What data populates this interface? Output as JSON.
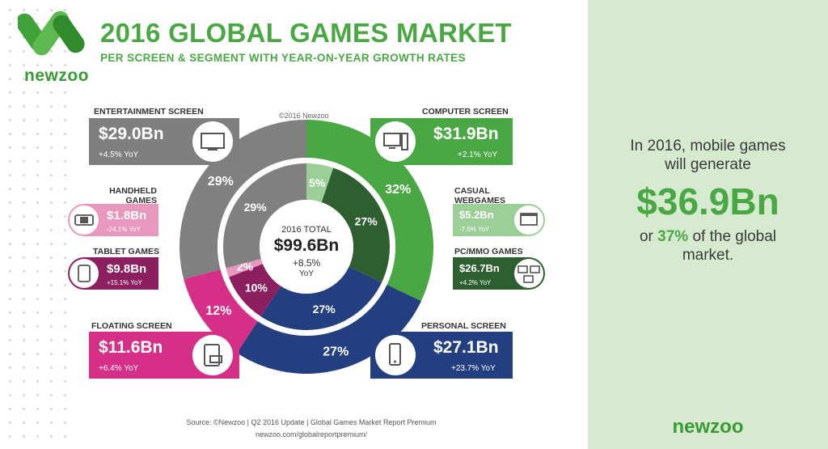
{
  "header": {
    "logo_text": "newzoo",
    "title": "2016 GLOBAL GAMES MARKET",
    "subtitle": "PER SCREEN & SEGMENT WITH YEAR-ON-YEAR GROWTH RATES",
    "copyright": "©2016 Newzoo"
  },
  "center": {
    "label": "2016 TOTAL",
    "value": "$99.6Bn",
    "growth": "+8.5%",
    "yoy": "YoY"
  },
  "boxes": {
    "entertainment": {
      "label": "ENTERTAINMENT SCREEN",
      "value": "$29.0Bn",
      "yoy": "+4.5% YoY",
      "color": "#7f7f7f"
    },
    "computer": {
      "label": "COMPUTER SCREEN",
      "value": "$31.9Bn",
      "yoy": "+2.1% YoY",
      "color": "#4aa844"
    },
    "handheld": {
      "label": "HANDHELD\nGAMES",
      "value": "$1.8Bn",
      "yoy": "-24.1% YoY",
      "color": "#e897bd"
    },
    "tablet": {
      "label": "TABLET GAMES",
      "value": "$9.8Bn",
      "yoy": "+15.1% YoY",
      "color": "#8b1f5f"
    },
    "casual": {
      "label": "CASUAL\nWEBGAMES",
      "value": "$5.2Bn",
      "yoy": "-7.5% YoY",
      "color": "#9ccf98"
    },
    "pcmmo": {
      "label": "PC/MMO GAMES",
      "value": "$26.7Bn",
      "yoy": "+4.2% YoY",
      "color": "#2f5e30"
    },
    "floating": {
      "label": "FLOATING SCREEN",
      "value": "$11.6Bn",
      "yoy": "+6.4% YoY",
      "color": "#d62f87"
    },
    "personal": {
      "label": "PERSONAL SCREEN",
      "value": "$27.1Bn",
      "yoy": "+23.7% YoY",
      "color": "#243f80"
    }
  },
  "chart_data": {
    "type": "pie",
    "title": "2016 GLOBAL GAMES MARKET",
    "outer_ring": {
      "slices": [
        {
          "name": "COMPUTER SCREEN",
          "value": 31.9,
          "percent": "32%",
          "color": "#4aa844"
        },
        {
          "name": "PERSONAL SCREEN",
          "value": 27.1,
          "percent": "27%",
          "color": "#243f80"
        },
        {
          "name": "FLOATING SCREEN",
          "value": 11.6,
          "percent": "12%",
          "color": "#d62f87"
        },
        {
          "name": "ENTERTAINMENT SCREEN",
          "value": 29.0,
          "percent": "29%",
          "color": "#808080"
        }
      ]
    },
    "inner_ring": {
      "slices": [
        {
          "name": "CASUAL WEBGAMES",
          "value": 5.2,
          "percent": "5%",
          "color": "#9ccf98"
        },
        {
          "name": "PC/MMO GAMES",
          "value": 26.7,
          "percent": "27%",
          "color": "#2f5e30"
        },
        {
          "name": "PERSONAL SCREEN",
          "value": 27.1,
          "percent": "27%",
          "color": "#243f80"
        },
        {
          "name": "TABLET GAMES",
          "value": 9.8,
          "percent": "10%",
          "color": "#8b1f5f"
        },
        {
          "name": "HANDHELD GAMES",
          "value": 1.8,
          "percent": "2%",
          "color": "#e897bd"
        },
        {
          "name": "ENTERTAINMENT SCREEN",
          "value": 29.0,
          "percent": "29%",
          "color": "#808080"
        }
      ]
    },
    "total": {
      "label": "2016 TOTAL",
      "value": 99.6
    }
  },
  "right_panel": {
    "line1": "In 2016, mobile games",
    "line2": "will generate",
    "big": "$36.9Bn",
    "line3_pre": "or ",
    "line3_pct": "37%",
    "line3_post": " of the global",
    "line4": "market.",
    "logo": "newzoo"
  },
  "footer": {
    "source": "Source: ©Newzoo | Q2 2016 Update | Global Games Market Report Premium",
    "url": "newzoo.com/globalreportpremium/"
  }
}
